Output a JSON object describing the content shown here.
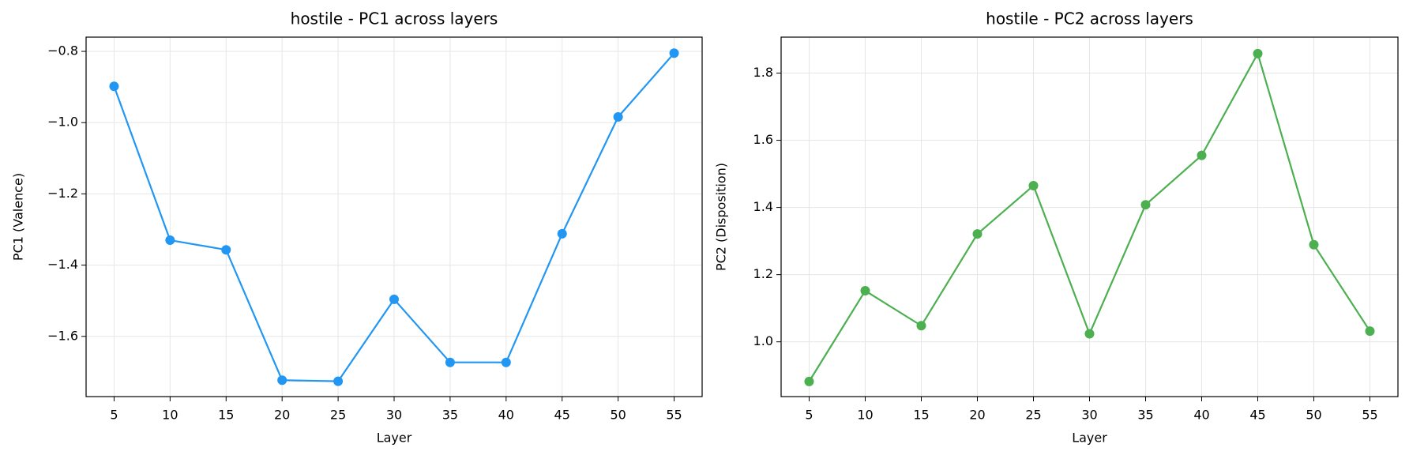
{
  "chart_data": [
    {
      "type": "line",
      "title": "hostile - PC1 across layers",
      "x_label": "Layer",
      "y_label": "PC1 (Valence)",
      "x": [
        5,
        10,
        15,
        20,
        25,
        30,
        35,
        40,
        45,
        50,
        55
      ],
      "series": [
        {
          "color": "#2196F3",
          "values": [
            -0.898,
            -1.33,
            -1.357,
            -1.723,
            -1.726,
            -1.496,
            -1.673,
            -1.673,
            -1.312,
            -0.984,
            -0.805
          ]
        }
      ],
      "xlim": [
        2.5,
        57.5
      ],
      "xticks": [
        5,
        10,
        15,
        20,
        25,
        30,
        35,
        40,
        45,
        50,
        55
      ],
      "ylim": [
        -1.769,
        -0.76
      ],
      "yticks": [
        {
          "value": -1.6,
          "label": "−1.6"
        },
        {
          "value": -1.4,
          "label": "−1.4"
        },
        {
          "value": -1.2,
          "label": "−1.2"
        },
        {
          "value": -1.0,
          "label": "−1.0"
        },
        {
          "value": -0.8,
          "label": "−0.8"
        }
      ],
      "grid": true
    },
    {
      "type": "line",
      "title": "hostile - PC2 across layers",
      "x_label": "Layer",
      "y_label": "PC2 (Disposition)",
      "x": [
        5,
        10,
        15,
        20,
        25,
        30,
        35,
        40,
        45,
        50,
        55
      ],
      "series": [
        {
          "color": "#4CAF50",
          "values": [
            0.882,
            1.152,
            1.048,
            1.321,
            1.465,
            1.024,
            1.408,
            1.555,
            1.858,
            1.289,
            1.032
          ]
        }
      ],
      "xlim": [
        2.5,
        57.5
      ],
      "xticks": [
        5,
        10,
        15,
        20,
        25,
        30,
        35,
        40,
        45,
        50,
        55
      ],
      "ylim": [
        0.837,
        1.907
      ],
      "yticks": [
        {
          "value": 1.0,
          "label": "1.0"
        },
        1.2,
        1.4,
        1.6,
        1.8
      ],
      "grid": true
    }
  ]
}
